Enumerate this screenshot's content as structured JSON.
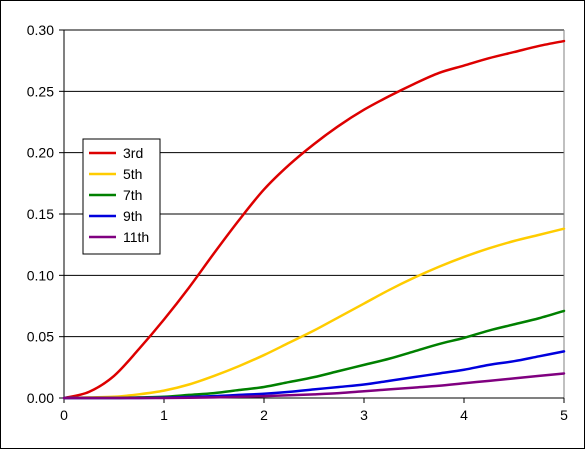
{
  "chart_data": {
    "type": "line",
    "title": "",
    "xlabel": "",
    "ylabel": "",
    "xlim": [
      0,
      5
    ],
    "ylim": [
      0,
      0.3
    ],
    "x_ticks": [
      "0",
      "1",
      "2",
      "3",
      "4",
      "5"
    ],
    "y_ticks": [
      "0.00",
      "0.05",
      "0.10",
      "0.15",
      "0.20",
      "0.25",
      "0.30"
    ],
    "grid": "horizontal",
    "legend_position": "left",
    "x": [
      0,
      0.25,
      0.5,
      0.75,
      1.0,
      1.25,
      1.5,
      1.75,
      2.0,
      2.25,
      2.5,
      2.75,
      3.0,
      3.25,
      3.5,
      3.75,
      4.0,
      4.25,
      4.5,
      4.75,
      5.0
    ],
    "series": [
      {
        "name": "3rd",
        "color": "#dd0000",
        "values": [
          0,
          0.005,
          0.018,
          0.04,
          0.064,
          0.09,
          0.118,
          0.145,
          0.17,
          0.19,
          0.207,
          0.222,
          0.235,
          0.246,
          0.256,
          0.265,
          0.271,
          0.277,
          0.282,
          0.287,
          0.291
        ]
      },
      {
        "name": "5th",
        "color": "#ffcc00",
        "values": [
          0,
          0.0005,
          0.001,
          0.003,
          0.006,
          0.011,
          0.018,
          0.026,
          0.035,
          0.045,
          0.055,
          0.066,
          0.077,
          0.088,
          0.098,
          0.107,
          0.115,
          0.122,
          0.128,
          0.133,
          0.138
        ]
      },
      {
        "name": "7th",
        "color": "#008000",
        "values": [
          0,
          0,
          0,
          0.0005,
          0.001,
          0.0025,
          0.004,
          0.0065,
          0.009,
          0.013,
          0.017,
          0.022,
          0.027,
          0.032,
          0.038,
          0.044,
          0.049,
          0.055,
          0.06,
          0.065,
          0.071
        ]
      },
      {
        "name": "9th",
        "color": "#0000dd",
        "values": [
          0,
          0,
          0,
          0,
          0.0003,
          0.0008,
          0.0015,
          0.0025,
          0.0035,
          0.005,
          0.007,
          0.009,
          0.011,
          0.014,
          0.017,
          0.02,
          0.023,
          0.027,
          0.03,
          0.034,
          0.038
        ]
      },
      {
        "name": "11th",
        "color": "#800080",
        "values": [
          0,
          0,
          0,
          0,
          0,
          0.0002,
          0.0005,
          0.001,
          0.0015,
          0.0022,
          0.003,
          0.004,
          0.0055,
          0.007,
          0.0085,
          0.01,
          0.012,
          0.014,
          0.016,
          0.018,
          0.02
        ]
      }
    ]
  }
}
